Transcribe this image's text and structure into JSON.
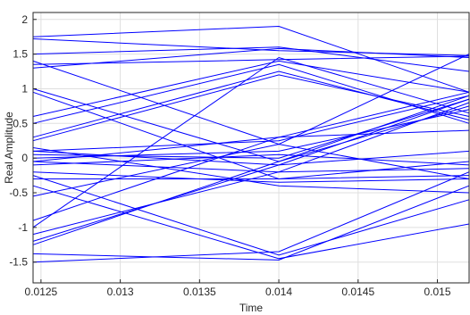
{
  "chart_data": {
    "type": "line",
    "xlabel": "Time",
    "ylabel": "Real Amplitude",
    "xlim": [
      0.01245,
      0.0152
    ],
    "ylim": [
      -1.8,
      2.1
    ],
    "grid": true,
    "line_color": "#0000ff",
    "x_ticks": [
      0.0125,
      0.013,
      0.0135,
      0.014,
      0.0145,
      0.015
    ],
    "x_tick_labels": [
      "0.0125",
      "0.013",
      "0.0135",
      "0.014",
      "0.0145",
      "0.015"
    ],
    "y_ticks": [
      -1.5,
      -1,
      -0.5,
      0,
      0.5,
      1,
      1.5,
      2
    ],
    "y_tick_labels": [
      "-1.5",
      "-1",
      "-0.5",
      "0",
      "0.5",
      "1",
      "1.5",
      "2"
    ],
    "x": [
      0.01245,
      0.014,
      0.0152
    ],
    "traces": [
      [
        1.75,
        1.9,
        0.95
      ],
      [
        1.72,
        1.55,
        1.48
      ],
      [
        1.5,
        1.6,
        1.25
      ],
      [
        1.35,
        1.42,
        1.47
      ],
      [
        1.3,
        1.58,
        1.45
      ],
      [
        1.0,
        -0.05,
        0.9
      ],
      [
        0.95,
        -0.3,
        -0.05
      ],
      [
        0.5,
        1.35,
        0.5
      ],
      [
        0.3,
        1.25,
        0.55
      ],
      [
        0.25,
        1.2,
        0.6
      ],
      [
        0.6,
        1.4,
        0.95
      ],
      [
        0.1,
        0.25,
        0.9
      ],
      [
        0.05,
        0.0,
        0.85
      ],
      [
        0.0,
        0.1,
        0.7
      ],
      [
        0.1,
        -0.1,
        0.1
      ],
      [
        -0.05,
        -0.2,
        -0.15
      ],
      [
        -0.1,
        0.05,
        -0.1
      ],
      [
        -0.2,
        -0.35,
        -0.3
      ],
      [
        -0.3,
        -0.3,
        -0.25
      ],
      [
        -0.25,
        -1.4,
        -0.6
      ],
      [
        -0.4,
        -1.45,
        -0.95
      ],
      [
        -0.55,
        0.2,
        -0.3
      ],
      [
        -0.9,
        0.3,
        0.95
      ],
      [
        -1.0,
        1.45,
        0.65
      ],
      [
        -1.1,
        -0.2,
        0.8
      ],
      [
        -1.2,
        -0.1,
        0.85
      ],
      [
        -1.25,
        -0.05,
        0.75
      ],
      [
        -1.38,
        -1.47,
        -0.4
      ],
      [
        -1.5,
        -1.35,
        -0.2
      ],
      [
        0.15,
        -0.4,
        -0.5
      ],
      [
        -0.05,
        0.3,
        0.4
      ],
      [
        1.4,
        0.2,
        1.5
      ]
    ]
  }
}
